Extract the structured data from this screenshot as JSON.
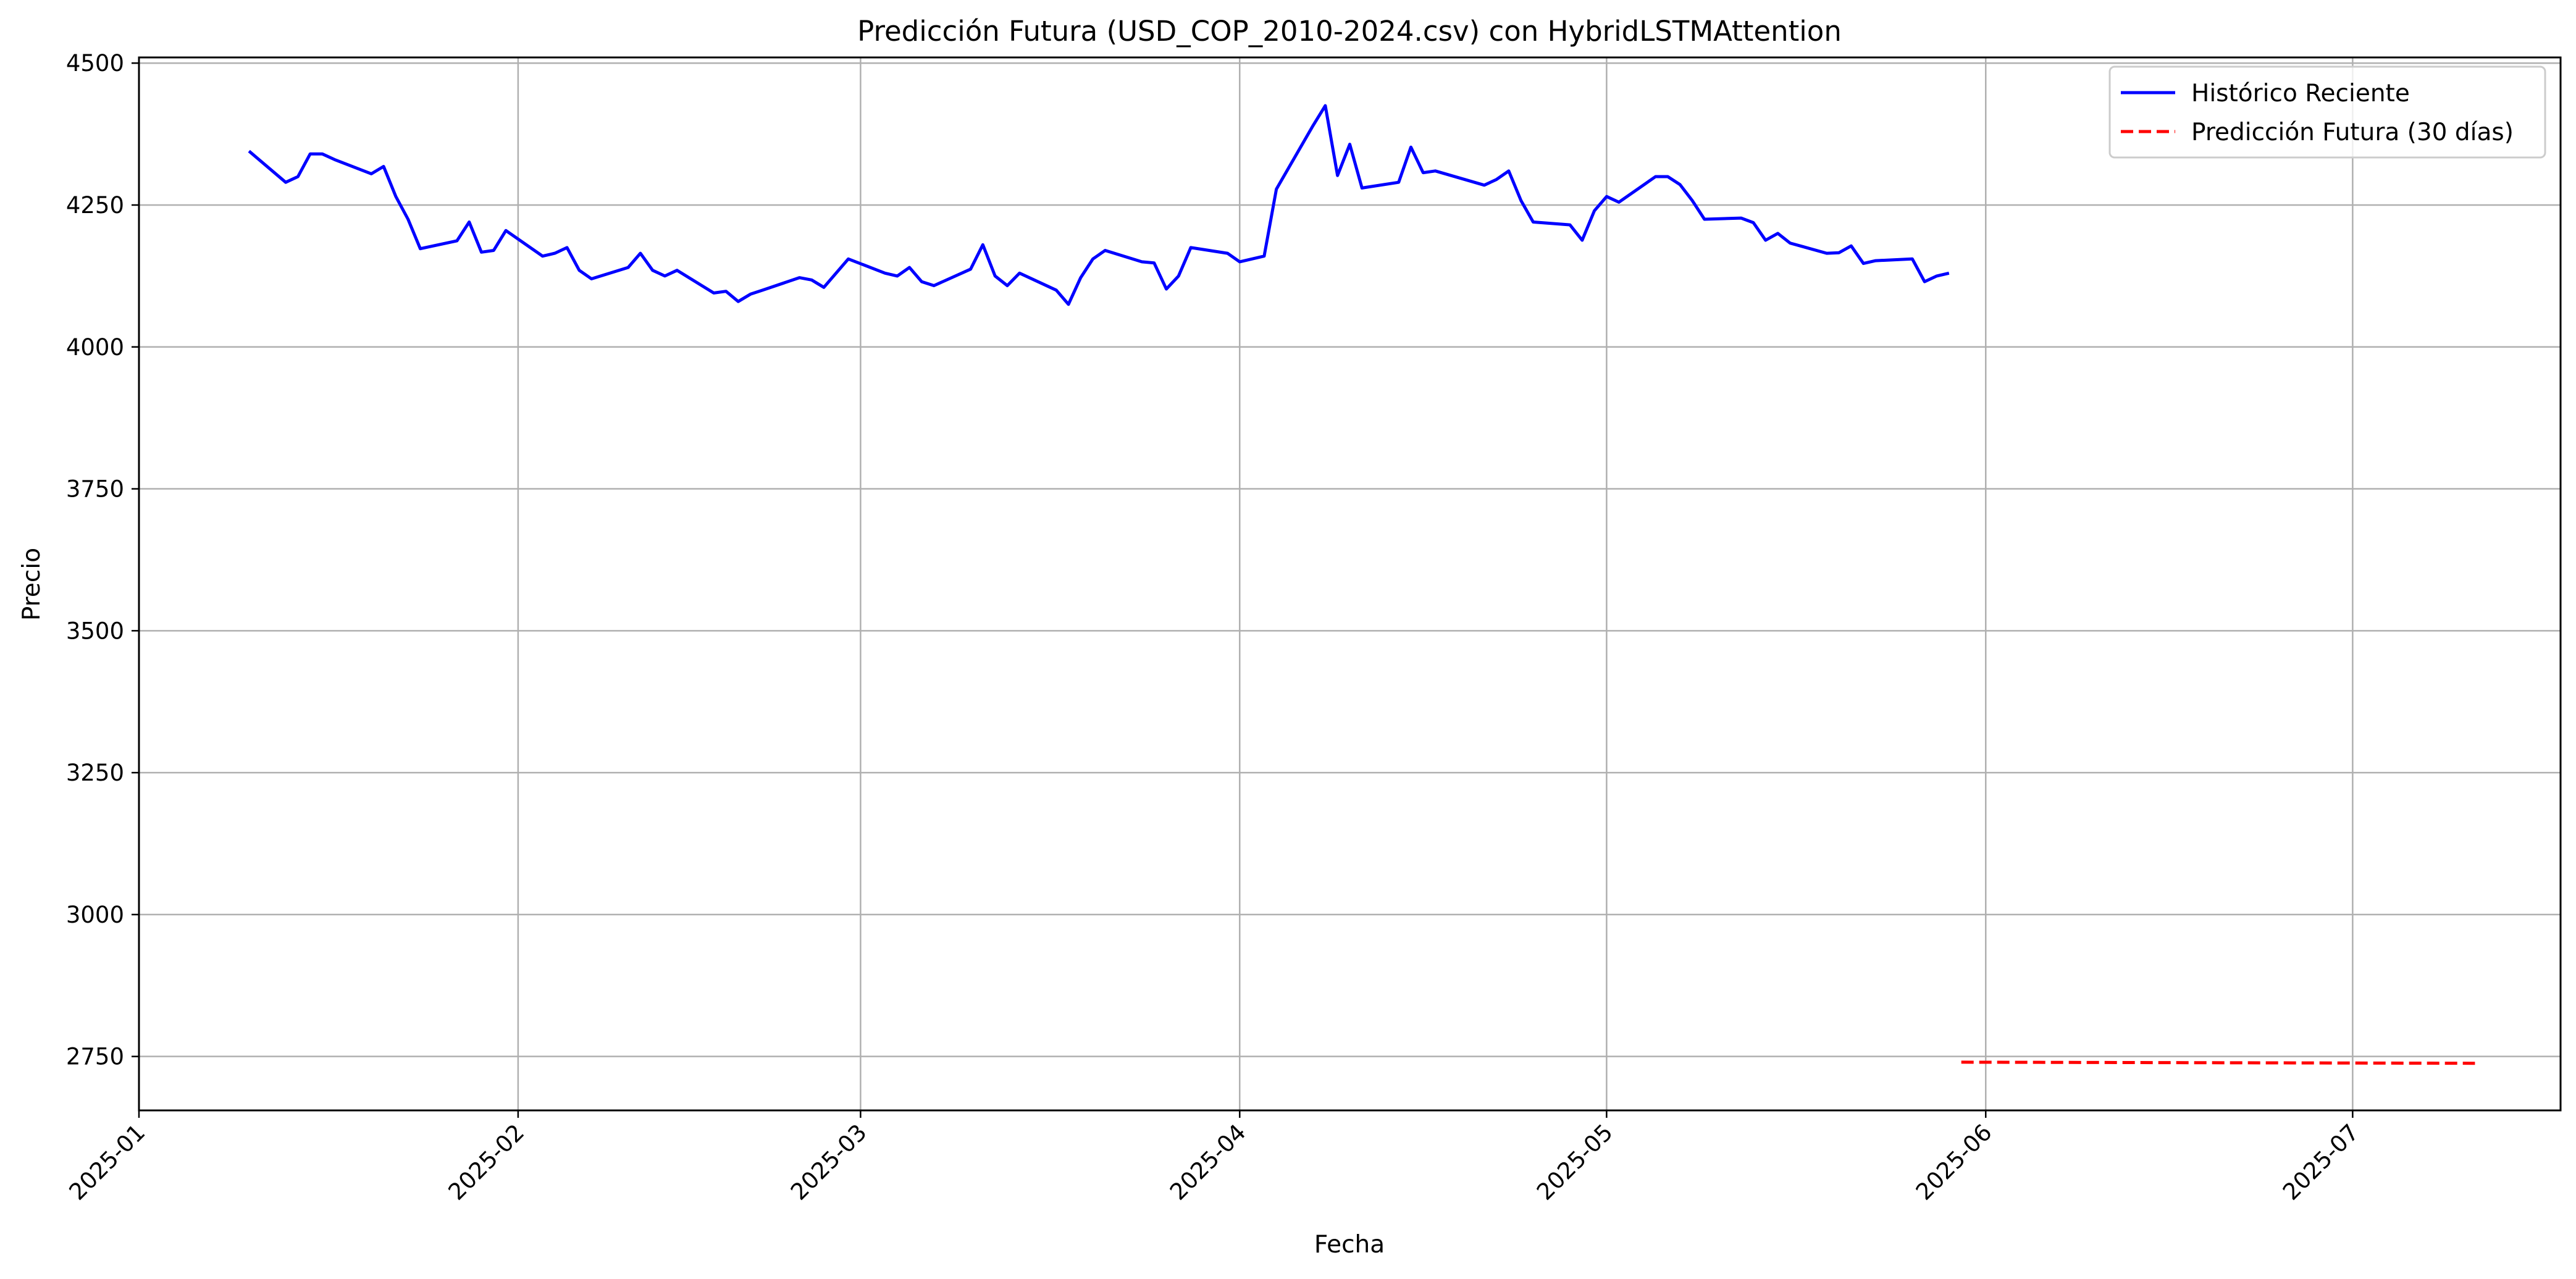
{
  "chart_data": {
    "type": "line",
    "title": "Predicción Futura (USD_COP_2010-2024.csv) con HybridLSTMAttention",
    "xlabel": "Fecha",
    "ylabel": "Precio",
    "x_axis_type": "date",
    "xlim": [
      "2025-01-01",
      "2025-07-18"
    ],
    "ylim": [
      2655,
      4510
    ],
    "grid": true,
    "legend_position": "top-right",
    "x_ticks": [
      {
        "date": "2025-01-01",
        "label": "2025-01"
      },
      {
        "date": "2025-02-01",
        "label": "2025-02"
      },
      {
        "date": "2025-03-01",
        "label": "2025-03"
      },
      {
        "date": "2025-04-01",
        "label": "2025-04"
      },
      {
        "date": "2025-05-01",
        "label": "2025-05"
      },
      {
        "date": "2025-06-01",
        "label": "2025-06"
      },
      {
        "date": "2025-07-01",
        "label": "2025-07"
      }
    ],
    "y_ticks": [
      2750,
      3000,
      3250,
      3500,
      3750,
      4000,
      4250,
      4500
    ],
    "series": [
      {
        "name": "Histórico Reciente",
        "color": "#0000ff",
        "style": "solid",
        "x": [
          "2025-01-10",
          "2025-01-13",
          "2025-01-14",
          "2025-01-15",
          "2025-01-16",
          "2025-01-17",
          "2025-01-20",
          "2025-01-21",
          "2025-01-22",
          "2025-01-23",
          "2025-01-24",
          "2025-01-27",
          "2025-01-28",
          "2025-01-29",
          "2025-01-30",
          "2025-01-31",
          "2025-02-03",
          "2025-02-04",
          "2025-02-05",
          "2025-02-06",
          "2025-02-07",
          "2025-02-10",
          "2025-02-11",
          "2025-02-12",
          "2025-02-13",
          "2025-02-14",
          "2025-02-17",
          "2025-02-18",
          "2025-02-19",
          "2025-02-20",
          "2025-02-21",
          "2025-02-24",
          "2025-02-25",
          "2025-02-26",
          "2025-02-27",
          "2025-02-28",
          "2025-03-03",
          "2025-03-04",
          "2025-03-05",
          "2025-03-06",
          "2025-03-07",
          "2025-03-10",
          "2025-03-11",
          "2025-03-12",
          "2025-03-13",
          "2025-03-14",
          "2025-03-17",
          "2025-03-18",
          "2025-03-19",
          "2025-03-20",
          "2025-03-21",
          "2025-03-24",
          "2025-03-25",
          "2025-03-26",
          "2025-03-27",
          "2025-03-28",
          "2025-03-31",
          "2025-04-01",
          "2025-04-03",
          "2025-04-04",
          "2025-04-07",
          "2025-04-08",
          "2025-04-09",
          "2025-04-10",
          "2025-04-11",
          "2025-04-14",
          "2025-04-15",
          "2025-04-16",
          "2025-04-17",
          "2025-04-21",
          "2025-04-22",
          "2025-04-23",
          "2025-04-24",
          "2025-04-25",
          "2025-04-28",
          "2025-04-29",
          "2025-04-30",
          "2025-05-01",
          "2025-05-02",
          "2025-05-05",
          "2025-05-06",
          "2025-05-07",
          "2025-05-08",
          "2025-05-09",
          "2025-05-12",
          "2025-05-13",
          "2025-05-14",
          "2025-05-15",
          "2025-05-16",
          "2025-05-19",
          "2025-05-20",
          "2025-05-21",
          "2025-05-22",
          "2025-05-23",
          "2025-05-26",
          "2025-05-27",
          "2025-05-28",
          "2025-05-29"
        ],
        "values": [
          4345,
          4290,
          4300,
          4340,
          4340,
          4330,
          4305,
          4318,
          4265,
          4225,
          4173,
          4187,
          4220,
          4167,
          4170,
          4205,
          4160,
          4165,
          4175,
          4135,
          4120,
          4140,
          4165,
          4135,
          4125,
          4135,
          4095,
          4098,
          4080,
          4093,
          4100,
          4122,
          4118,
          4105,
          4130,
          4155,
          4130,
          4125,
          4140,
          4115,
          4108,
          4137,
          4180,
          4125,
          4108,
          4130,
          4100,
          4075,
          4122,
          4155,
          4170,
          4150,
          4148,
          4102,
          4125,
          4175,
          4165,
          4150,
          4160,
          4278,
          4390,
          4425,
          4302,
          4357,
          4280,
          4290,
          4352,
          4307,
          4310,
          4285,
          4295,
          4310,
          4258,
          4220,
          4215,
          4188,
          4240,
          4265,
          4255,
          4300,
          4300,
          4286,
          4258,
          4225,
          4227,
          4219,
          4188,
          4200,
          4183,
          4165,
          4166,
          4178,
          4147,
          4152,
          4155,
          4115,
          4125,
          4130
        ]
      },
      {
        "name": "Predicción Futura (30 días)",
        "color": "#ff0000",
        "style": "dashed",
        "x": [
          "2025-05-30",
          "2025-07-11"
        ],
        "values": [
          2740,
          2738
        ]
      }
    ]
  }
}
